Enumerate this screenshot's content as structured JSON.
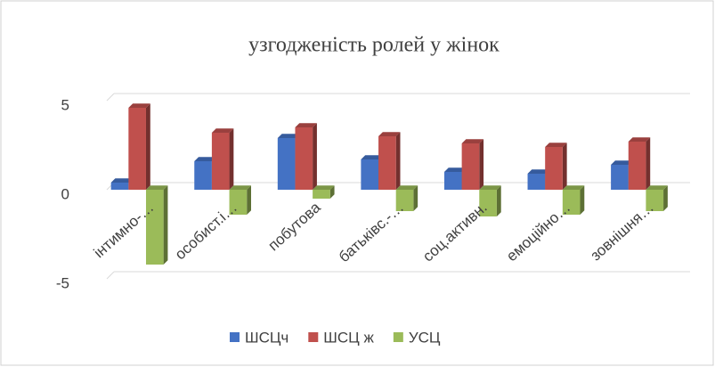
{
  "chart_data": {
    "type": "bar",
    "title": "узгодженість ролей у жінок",
    "categories": [
      "інтимно-…",
      "особист.і…",
      "побутова",
      "батьківс.-…",
      "соц.активн.",
      "емоційно…",
      "зовнішня…"
    ],
    "series": [
      {
        "name": "ШСЦч",
        "color": "#4472c4",
        "values": [
          0.4,
          1.6,
          2.9,
          1.7,
          1.0,
          0.9,
          1.4
        ]
      },
      {
        "name": "ШСЦ ж",
        "color": "#c0504d",
        "values": [
          4.6,
          3.2,
          3.5,
          3.0,
          2.6,
          2.4,
          2.7
        ]
      },
      {
        "name": "УСЦ",
        "color": "#9bbb59",
        "values": [
          -4.2,
          -1.4,
          -0.5,
          -1.2,
          -1.5,
          -1.4,
          -1.2
        ]
      }
    ],
    "ylim": [
      -5,
      5
    ],
    "yticks": [
      -5,
      0,
      5
    ],
    "grid": true,
    "legend": "bottom"
  }
}
